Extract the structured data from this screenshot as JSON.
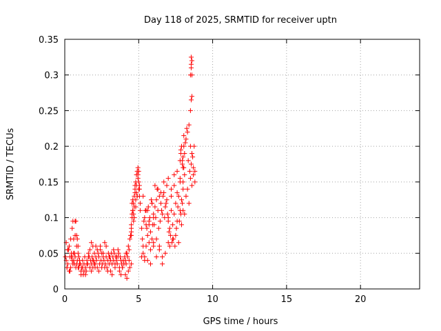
{
  "chart_data": {
    "type": "scatter",
    "title": "Day 118 of 2025, SRMTID for receiver uptn",
    "xlabel": "GPS time / hours",
    "ylabel": "SRMTID / TECUs",
    "xlim": [
      0,
      24
    ],
    "ylim": [
      0,
      0.35
    ],
    "xticks": [
      0,
      5,
      10,
      15,
      20
    ],
    "yticks": [
      0,
      0.05,
      0.1,
      0.15,
      0.2,
      0.25,
      0.3,
      0.35
    ],
    "grid": true,
    "legend": "none",
    "marker": "+",
    "color": "#ff0000",
    "series": [
      {
        "x": [
          0.05,
          0.1,
          0.15,
          0.2,
          0.25,
          0.3,
          0.35,
          0.4,
          0.45,
          0.5,
          0.55,
          0.6,
          0.65,
          0.7,
          0.75,
          0.8,
          0.85,
          0.9,
          0.95,
          1.0,
          0.1,
          0.2,
          0.3,
          0.4,
          0.5,
          0.6,
          0.7,
          0.8,
          0.9,
          1.0,
          0.15,
          0.35,
          0.55,
          0.75,
          0.95,
          0.2,
          0.45,
          0.65,
          0.85,
          0.5,
          0.6,
          0.7,
          0.8,
          0.9,
          1.05,
          1.1,
          1.15,
          1.2,
          1.25,
          1.3,
          1.35,
          1.4,
          1.45,
          1.5,
          1.55,
          1.6,
          1.65,
          1.7,
          1.75,
          1.8,
          1.85,
          1.9,
          1.95,
          2.0,
          1.1,
          1.3,
          1.5,
          1.7,
          1.9,
          1.2,
          1.4,
          1.6,
          1.8,
          2.0,
          2.05,
          2.1,
          2.15,
          2.2,
          2.25,
          2.3,
          2.35,
          2.4,
          2.45,
          2.5,
          2.55,
          2.6,
          2.65,
          2.7,
          2.75,
          2.8,
          2.85,
          2.9,
          2.95,
          3.0,
          2.1,
          2.3,
          2.5,
          2.7,
          2.9,
          2.2,
          2.4,
          2.6,
          2.8,
          3.0,
          1.8,
          1.9,
          2.05,
          3.05,
          3.1,
          3.15,
          3.2,
          3.25,
          3.3,
          3.35,
          3.4,
          3.45,
          3.5,
          3.55,
          3.6,
          3.65,
          3.7,
          3.75,
          3.8,
          3.85,
          3.9,
          3.95,
          4.0,
          3.1,
          3.3,
          3.5,
          3.7,
          3.9,
          3.2,
          3.4,
          3.6,
          3.8,
          4.05,
          4.1,
          4.15,
          4.2,
          4.25,
          4.3,
          4.35,
          4.4,
          4.45,
          4.5,
          4.1,
          4.2,
          4.3,
          4.4,
          4.5,
          4.15,
          4.35,
          4.5,
          4.55,
          4.6,
          4.65,
          4.7,
          4.75,
          4.8,
          4.85,
          4.9,
          4.95,
          5.0,
          5.05,
          5.1,
          4.5,
          4.55,
          4.6,
          4.65,
          4.7,
          4.75,
          4.8,
          4.85,
          4.9,
          4.95,
          5.0,
          5.05,
          5.1,
          4.5,
          4.6,
          4.7,
          4.8,
          4.9,
          5.0,
          4.55,
          4.65,
          4.75,
          4.85,
          4.95,
          5.05,
          5.2,
          5.3,
          5.4,
          5.5,
          5.6,
          5.7,
          5.8,
          5.9,
          6.0,
          5.25,
          5.35,
          5.45,
          5.55,
          5.65,
          5.75,
          5.85,
          5.95,
          5.2,
          5.3,
          5.4,
          5.5,
          5.6,
          5.7,
          5.8,
          5.9,
          6.0,
          5.3,
          5.5,
          5.7,
          5.9,
          5.4,
          5.6,
          5.8,
          6.0,
          6.1,
          6.2,
          6.3,
          6.4,
          6.5,
          6.6,
          6.7,
          6.8,
          6.9,
          7.0,
          6.05,
          6.15,
          6.25,
          6.35,
          6.45,
          6.55,
          6.65,
          6.75,
          6.85,
          6.95,
          6.0,
          6.2,
          6.4,
          6.6,
          6.8,
          7.0,
          6.1,
          6.3,
          6.5,
          6.7,
          6.9,
          6.2,
          6.4,
          6.6,
          7.0,
          7.1,
          7.2,
          7.3,
          7.4,
          7.5,
          7.6,
          7.7,
          7.8,
          7.9,
          8.0,
          7.05,
          7.15,
          7.25,
          7.35,
          7.45,
          7.55,
          7.65,
          7.75,
          7.85,
          7.95,
          7.0,
          7.2,
          7.4,
          7.6,
          7.8,
          8.0,
          7.1,
          7.3,
          7.5,
          7.7,
          7.9,
          7.2,
          7.4,
          7.6,
          7.8,
          7.8,
          7.85,
          7.9,
          7.95,
          8.0,
          8.05,
          8.1,
          7.85,
          7.95,
          8.05,
          8.0,
          8.1,
          8.2,
          8.3,
          8.4,
          8.5,
          8.6,
          8.7,
          8.8,
          8.05,
          8.15,
          8.25,
          8.35,
          8.45,
          8.55,
          8.65,
          8.75,
          8.0,
          8.2,
          8.4,
          8.6,
          8.8,
          8.1,
          8.3,
          8.5,
          8.7,
          8.5,
          8.55,
          8.6,
          8.5,
          8.55,
          8.6,
          8.55,
          8.6,
          8.55
        ],
        "y": [
          0.045,
          0.04,
          0.03,
          0.035,
          0.055,
          0.06,
          0.045,
          0.03,
          0.05,
          0.045,
          0.035,
          0.04,
          0.05,
          0.045,
          0.03,
          0.035,
          0.04,
          0.03,
          0.045,
          0.035,
          0.065,
          0.055,
          0.025,
          0.07,
          0.04,
          0.05,
          0.075,
          0.06,
          0.05,
          0.04,
          0.03,
          0.025,
          0.095,
          0.095,
          0.03,
          0.055,
          0.045,
          0.035,
          0.07,
          0.085,
          0.07,
          0.095,
          0.075,
          0.06,
          0.035,
          0.025,
          0.03,
          0.04,
          0.02,
          0.035,
          0.045,
          0.03,
          0.025,
          0.04,
          0.035,
          0.05,
          0.045,
          0.03,
          0.04,
          0.035,
          0.045,
          0.03,
          0.04,
          0.035,
          0.02,
          0.025,
          0.035,
          0.055,
          0.04,
          0.03,
          0.02,
          0.045,
          0.025,
          0.05,
          0.035,
          0.045,
          0.04,
          0.03,
          0.05,
          0.045,
          0.035,
          0.055,
          0.04,
          0.05,
          0.035,
          0.045,
          0.04,
          0.03,
          0.035,
          0.045,
          0.03,
          0.04,
          0.05,
          0.035,
          0.06,
          0.025,
          0.03,
          0.065,
          0.025,
          0.055,
          0.06,
          0.05,
          0.06,
          0.045,
          0.065,
          0.06,
          0.03,
          0.045,
          0.04,
          0.05,
          0.035,
          0.045,
          0.04,
          0.05,
          0.035,
          0.045,
          0.04,
          0.035,
          0.045,
          0.05,
          0.03,
          0.045,
          0.04,
          0.035,
          0.03,
          0.04,
          0.035,
          0.025,
          0.055,
          0.045,
          0.025,
          0.03,
          0.02,
          0.03,
          0.055,
          0.02,
          0.045,
          0.04,
          0.035,
          0.05,
          0.045,
          0.06,
          0.055,
          0.07,
          0.075,
          0.08,
          0.02,
          0.015,
          0.025,
          0.03,
          0.035,
          0.05,
          0.04,
          0.09,
          0.1,
          0.11,
          0.12,
          0.13,
          0.14,
          0.15,
          0.16,
          0.165,
          0.17,
          0.15,
          0.14,
          0.12,
          0.075,
          0.105,
          0.125,
          0.095,
          0.115,
          0.135,
          0.125,
          0.145,
          0.13,
          0.155,
          0.165,
          0.13,
          0.11,
          0.085,
          0.11,
          0.1,
          0.115,
          0.13,
          0.14,
          0.12,
          0.105,
          0.145,
          0.135,
          0.16,
          0.145,
          0.085,
          0.06,
          0.1,
          0.09,
          0.11,
          0.095,
          0.08,
          0.12,
          0.105,
          0.07,
          0.095,
          0.11,
          0.085,
          0.115,
          0.1,
          0.125,
          0.09,
          0.045,
          0.05,
          0.04,
          0.06,
          0.075,
          0.065,
          0.055,
          0.07,
          0.06,
          0.13,
          0.11,
          0.09,
          0.12,
          0.045,
          0.04,
          0.035,
          0.1,
          0.115,
          0.125,
          0.11,
          0.13,
          0.12,
          0.105,
          0.135,
          0.115,
          0.125,
          0.095,
          0.09,
          0.1,
          0.14,
          0.085,
          0.095,
          0.11,
          0.13,
          0.1,
          0.12,
          0.105,
          0.065,
          0.07,
          0.06,
          0.045,
          0.05,
          0.065,
          0.145,
          0.14,
          0.135,
          0.15,
          0.145,
          0.045,
          0.055,
          0.035,
          0.1,
          0.085,
          0.11,
          0.09,
          0.105,
          0.12,
          0.095,
          0.13,
          0.11,
          0.125,
          0.14,
          0.08,
          0.075,
          0.065,
          0.07,
          0.06,
          0.085,
          0.115,
          0.095,
          0.105,
          0.12,
          0.155,
          0.14,
          0.16,
          0.165,
          0.15,
          0.17,
          0.06,
          0.07,
          0.075,
          0.065,
          0.09,
          0.13,
          0.145,
          0.135,
          0.155,
          0.18,
          0.19,
          0.2,
          0.175,
          0.185,
          0.2,
          0.19,
          0.195,
          0.18,
          0.17,
          0.15,
          0.16,
          0.21,
          0.22,
          0.23,
          0.2,
          0.19,
          0.17,
          0.165,
          0.215,
          0.205,
          0.225,
          0.18,
          0.165,
          0.175,
          0.185,
          0.2,
          0.11,
          0.13,
          0.12,
          0.145,
          0.15,
          0.105,
          0.14,
          0.155,
          0.16,
          0.25,
          0.265,
          0.27,
          0.3,
          0.315,
          0.32,
          0.325,
          0.3,
          0.31
        ]
      }
    ]
  }
}
